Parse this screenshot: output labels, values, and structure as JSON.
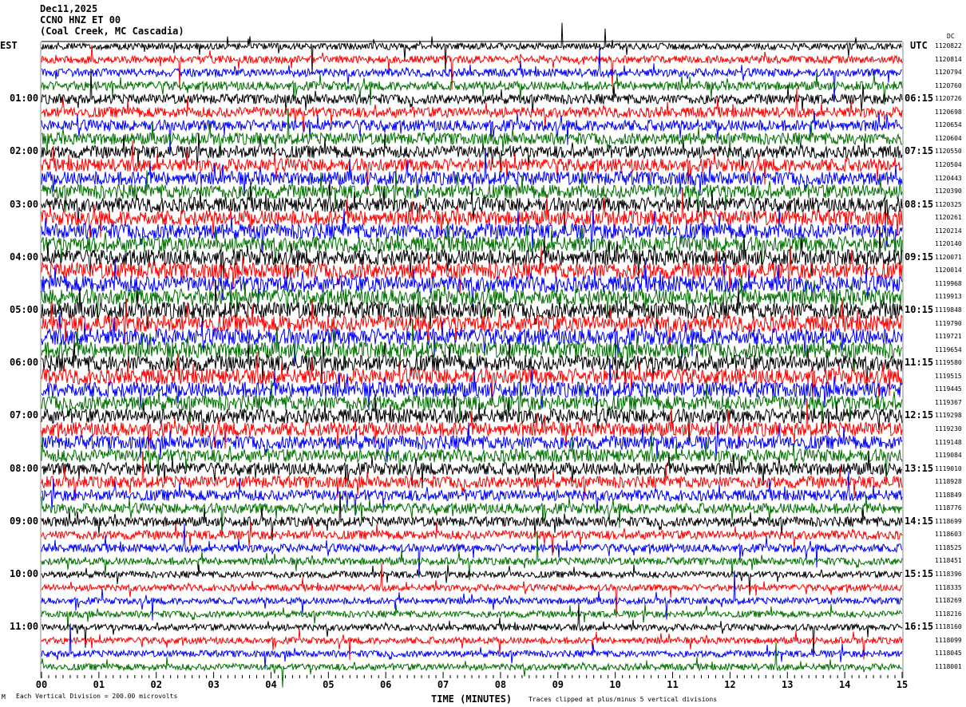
{
  "header": {
    "date": "Dec11,2025",
    "channel": "CCNO HNZ ET 00",
    "location": "(Coal Creek, MC Cascadia)"
  },
  "chart_data": {
    "type": "line",
    "chart_kind": "helicorder seismogram",
    "left_timezone": "EST",
    "right_timezone": "UTC",
    "right_column_header": "DC",
    "left_hour_labels": [
      "01:00",
      "02:00",
      "03:00",
      "04:00",
      "05:00",
      "06:00",
      "07:00",
      "08:00",
      "09:00",
      "10:00",
      "11:00"
    ],
    "right_hour_labels": [
      "06:15",
      "07:15",
      "08:15",
      "09:15",
      "10:15",
      "11:15",
      "12:15",
      "13:15",
      "14:15",
      "15:15",
      "16:15"
    ],
    "minutes_per_line": 15,
    "trace_colors": [
      "#000000",
      "#ff0000",
      "#0000ff",
      "#007000"
    ],
    "dc_offsets": [
      "1120822",
      "1120814",
      "1120794",
      "1120760",
      "1120726",
      "1120698",
      "1120654",
      "1120604",
      "1120550",
      "1120504",
      "1120443",
      "1120390",
      "1120325",
      "1120261",
      "1120214",
      "1120140",
      "1120071",
      "1120014",
      "1119968",
      "1119913",
      "1119848",
      "1119790",
      "1119721",
      "1119654",
      "1119580",
      "1119515",
      "1119445",
      "1119367",
      "1119298",
      "1119230",
      "1119148",
      "1119084",
      "1119010",
      "1118928",
      "1118849",
      "1118776",
      "1118699",
      "1118603",
      "1118525",
      "1118451",
      "1118396",
      "1118335",
      "1118269",
      "1118216",
      "1118160",
      "1118099",
      "1118045",
      "1118001"
    ],
    "x_ticks": [
      "00",
      "01",
      "02",
      "03",
      "04",
      "05",
      "06",
      "07",
      "08",
      "09",
      "10",
      "11",
      "12",
      "13",
      "14",
      "15"
    ],
    "xlabel": "TIME (MINUTES)",
    "xlim": [
      0,
      15
    ],
    "scale_note": "Each Vertical Division =  200.00 microvolts",
    "clip_note": "Traces clipped at plus/minus 5 vertical divisions",
    "corner_mark": "M"
  }
}
